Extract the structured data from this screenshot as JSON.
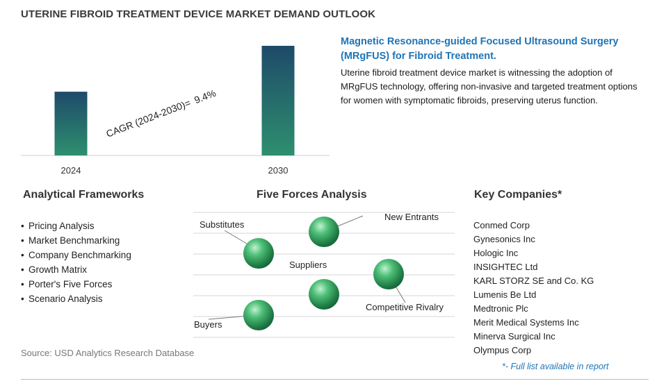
{
  "page_title": "UTERINE FIBROID TREATMENT DEVICE MARKET DEMAND OUTLOOK",
  "chart_data": {
    "type": "bar",
    "categories": [
      "2024",
      "2030"
    ],
    "values": [
      1.0,
      1.72
    ],
    "cagr_label": "CAGR (2024-2030)=",
    "cagr_value": "9.4%"
  },
  "highlight": {
    "title": "Magnetic Resonance-guided Focused Ultrasound Surgery (MRgFUS) for Fibroid Treatment.",
    "body": "Uterine fibroid treatment device market is witnessing the adoption of MRgFUS technology, offering non-invasive and targeted treatment options for women with symptomatic fibroids, preserving uterus function."
  },
  "analytical_frameworks": {
    "title": "Analytical Frameworks",
    "items": [
      "Pricing Analysis",
      "Market Benchmarking",
      "Company Benchmarking",
      "Growth Matrix",
      "Porter's Five Forces",
      "Scenario Analysis"
    ]
  },
  "five_forces": {
    "title": "Five Forces Analysis",
    "labels": {
      "substitutes": "Substitutes",
      "new_entrants": "New Entrants",
      "suppliers": "Suppliers",
      "competitive_rivalry": "Competitive Rivalry",
      "buyers": "Buyers"
    }
  },
  "key_companies": {
    "title": "Key Companies*",
    "items": [
      "Conmed Corp",
      "Gynesonics Inc",
      "Hologic Inc",
      "INSIGHTEC Ltd",
      "KARL STORZ SE and Co. KG",
      "Lumenis Be Ltd",
      "Medtronic Plc",
      "Merit Medical Systems Inc",
      "Minerva Surgical Inc",
      "Olympus Corp"
    ],
    "footnote": "*- Full list available in report"
  },
  "source": "Source: USD Analytics Research Database",
  "colors": {
    "title_blue": "#1f74b5",
    "bar_top": "#1e4f6b",
    "bar_bottom": "#2e8f6e",
    "sphere": "#2e9a57"
  }
}
